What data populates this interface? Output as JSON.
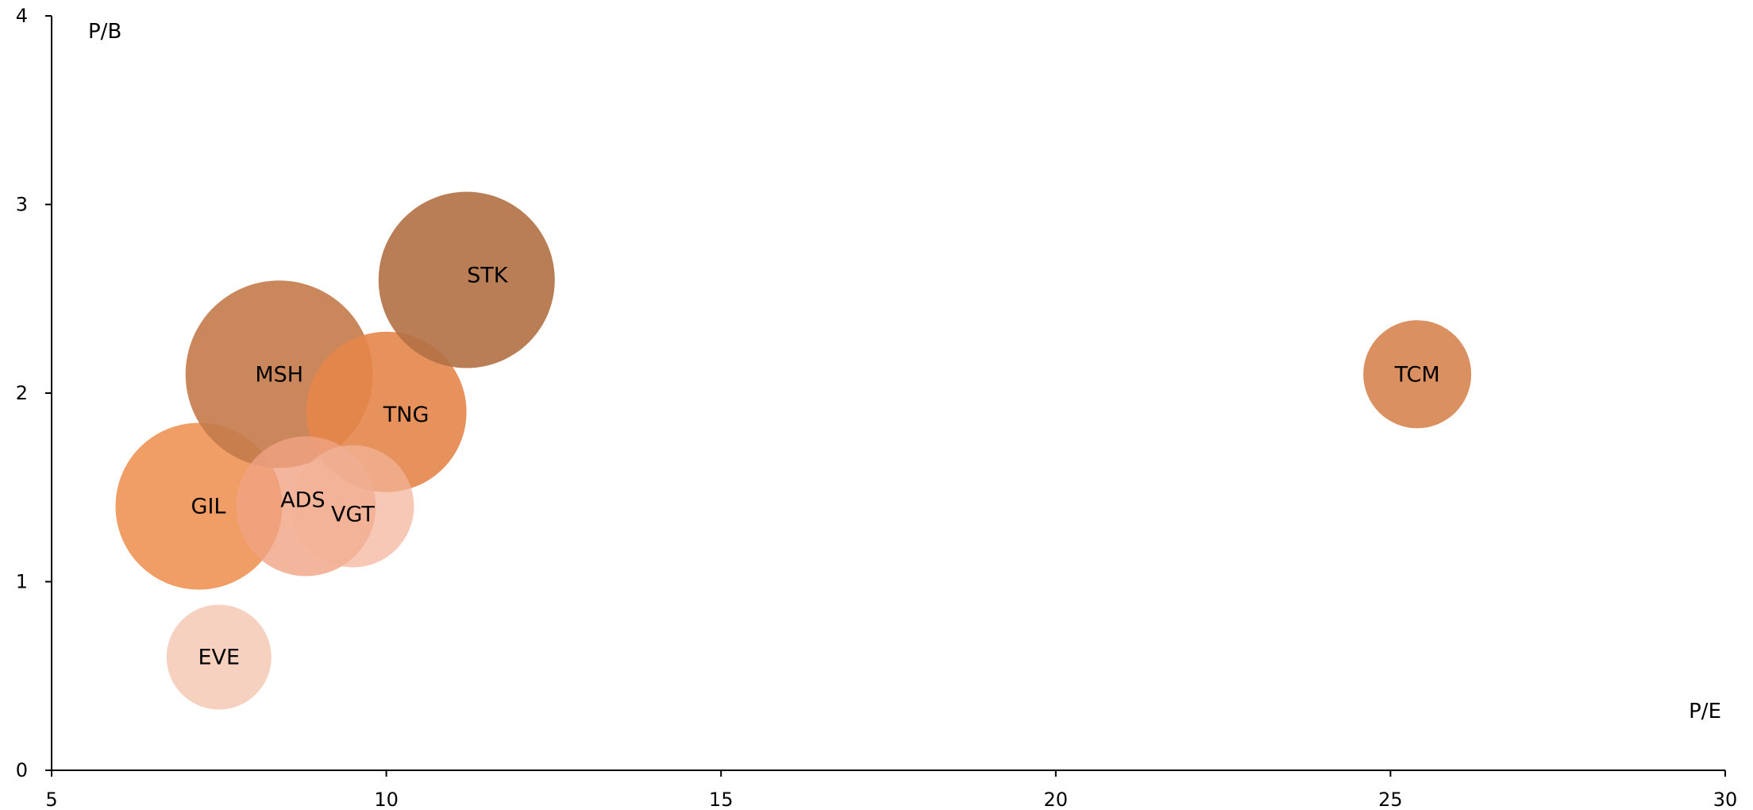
{
  "chart_data": {
    "type": "scatter",
    "xlabel": "P/E",
    "ylabel": "P/B",
    "xlim": [
      5,
      30
    ],
    "ylim": [
      0,
      4
    ],
    "xticks": [
      "5",
      "10",
      "15",
      "20",
      "25",
      "30"
    ],
    "yticks": [
      "0",
      "1",
      "2",
      "3",
      "4"
    ],
    "grid": false,
    "legend": "none",
    "points": [
      {
        "label": "EVE",
        "x": 7.5,
        "y": 0.6,
        "color": "#f3bfa8",
        "opacity": 0.72
      },
      {
        "label": "GIL",
        "x": 7.2,
        "y": 1.4,
        "color": "#ee9150",
        "opacity": 0.88
      },
      {
        "label": "MSH",
        "x": 8.4,
        "y": 2.1,
        "color": "#c47a4a",
        "opacity": 0.9
      },
      {
        "label": "TNG",
        "x": 10.0,
        "y": 1.9,
        "color": "#e4864a",
        "opacity": 0.9
      },
      {
        "label": "ADS",
        "x": 8.8,
        "y": 1.4,
        "color": "#f0a383",
        "opacity": 0.8
      },
      {
        "label": "VGT",
        "x": 9.5,
        "y": 1.4,
        "color": "#f3b399",
        "opacity": 0.72
      },
      {
        "label": "STK",
        "x": 11.2,
        "y": 2.6,
        "color": "#b27045",
        "opacity": 0.9
      },
      {
        "label": "TCM",
        "x": 25.4,
        "y": 2.1,
        "color": "#d5814a",
        "opacity": 0.88
      }
    ]
  }
}
